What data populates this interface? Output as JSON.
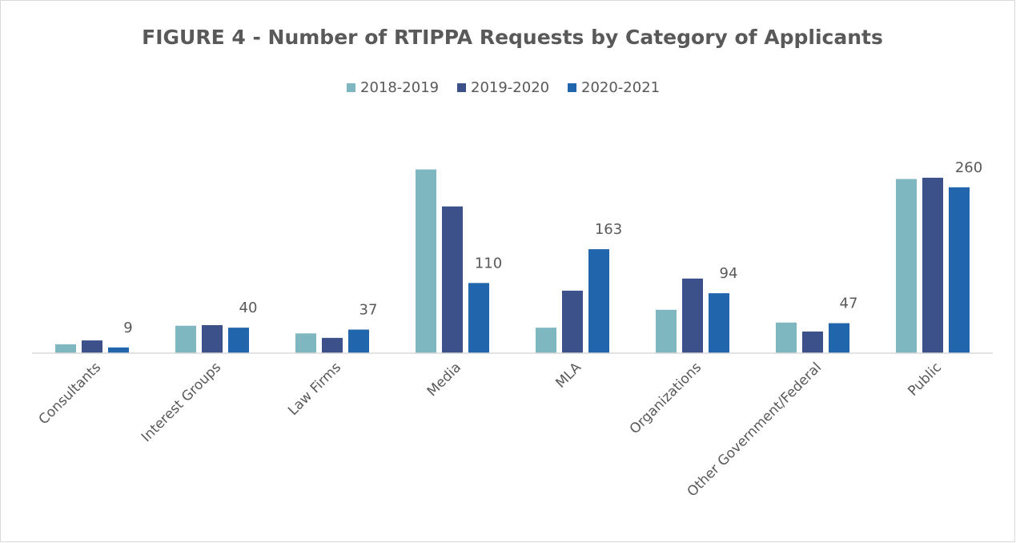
{
  "chart_data": {
    "type": "bar",
    "title": "FIGURE 4 - Number of RTIPPA Requests by Category of Applicants",
    "categories": [
      "Consultants",
      "Interest Groups",
      "Law Firms",
      "Media",
      "MLA",
      "Organizations",
      "Other Government/Federal",
      "Public"
    ],
    "series": [
      {
        "name": "2018-2019",
        "color": "#7fb7c0",
        "values": [
          14,
          43,
          31,
          288,
          40,
          68,
          48,
          273
        ]
      },
      {
        "name": "2019-2020",
        "color": "#3c5089",
        "values": [
          20,
          44,
          24,
          230,
          98,
          117,
          34,
          275
        ]
      },
      {
        "name": "2020-2021",
        "color": "#2166ac",
        "values": [
          9,
          40,
          37,
          110,
          163,
          94,
          47,
          260
        ],
        "show_labels": true
      }
    ],
    "ylim": [
      0,
      300
    ],
    "legend": "top"
  }
}
